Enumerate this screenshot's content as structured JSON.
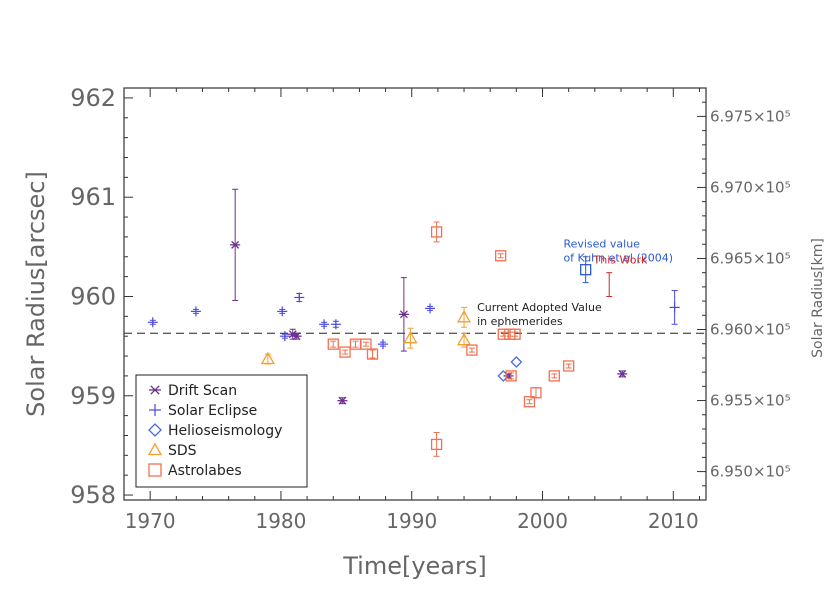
{
  "chart_data": {
    "type": "scatter",
    "xlabel": "Time[years]",
    "ylabel": "Solar Radius[arcsec]",
    "y2label": "Solar Radius[km]",
    "xlim": [
      1968,
      2012.5
    ],
    "ylim": [
      957.95,
      962.1
    ],
    "y2lim": [
      694800,
      697700
    ],
    "x_ticks": [
      1970,
      1980,
      1990,
      2000,
      2010
    ],
    "x_tick_labels": [
      "1970",
      "1980",
      "1990",
      "2000",
      "2010"
    ],
    "y_ticks": [
      958,
      959,
      960,
      961,
      962
    ],
    "y_tick_labels": [
      "958",
      "959",
      "960",
      "961",
      "962"
    ],
    "y2_ticks": [
      695000,
      695500,
      696000,
      696500,
      697000,
      697500
    ],
    "y2_tick_labels": [
      "6.950×10⁵",
      "6.955×10⁵",
      "6.960×10⁵",
      "6.965×10⁵",
      "6.970×10⁵",
      "6.975×10⁵"
    ],
    "reference_line": {
      "y": 959.63,
      "label_line1": "Current Adopted Value",
      "label_line2": "in ephemerides"
    },
    "legend": {
      "placement": "bottom-left",
      "entries": [
        {
          "name": "Drift Scan",
          "symbol": "asterisk",
          "color": "#6b2f8f"
        },
        {
          "name": "Solar Eclipse",
          "symbol": "plus",
          "color": "#4a4ae0"
        },
        {
          "name": "Helioseismology",
          "symbol": "diamond",
          "color": "#4a6ae0"
        },
        {
          "name": "SDS",
          "symbol": "triangle",
          "color": "#f0a030"
        },
        {
          "name": "Astrolabes",
          "symbol": "square",
          "color": "#f07050"
        }
      ]
    },
    "series": [
      {
        "name": "Drift Scan",
        "symbol": "asterisk",
        "color": "#6b2f8f",
        "points": [
          {
            "x": 1976.5,
            "y": 960.52,
            "err": 0.56
          },
          {
            "x": 1980.9,
            "y": 959.62,
            "err": 0.05
          },
          {
            "x": 1981.2,
            "y": 959.6,
            "err": 0.03
          },
          {
            "x": 1984.7,
            "y": 958.95,
            "err": 0.03
          },
          {
            "x": 1989.4,
            "y": 959.82,
            "err": 0.37
          },
          {
            "x": 1997.4,
            "y": 959.2,
            "err": 0.02
          },
          {
            "x": 2006.1,
            "y": 959.22,
            "err": 0.03
          }
        ]
      },
      {
        "name": "Solar Eclipse",
        "symbol": "plus",
        "color": "#4a4ae0",
        "points": [
          {
            "x": 1970.2,
            "y": 959.74,
            "err": 0.02
          },
          {
            "x": 1973.5,
            "y": 959.85,
            "err": 0.02
          },
          {
            "x": 1980.1,
            "y": 959.85,
            "err": 0.02
          },
          {
            "x": 1980.3,
            "y": 959.6,
            "err": 0.02
          },
          {
            "x": 1981.4,
            "y": 959.99,
            "err": 0.04
          },
          {
            "x": 1983.3,
            "y": 959.72,
            "err": 0.02
          },
          {
            "x": 1984.2,
            "y": 959.72,
            "err": 0.03
          },
          {
            "x": 1987.8,
            "y": 959.52,
            "err": 0.02
          },
          {
            "x": 1991.4,
            "y": 959.88,
            "err": 0.02
          },
          {
            "x": 2010.1,
            "y": 959.89,
            "err": 0.17
          }
        ]
      },
      {
        "name": "Helioseismology",
        "symbol": "diamond",
        "color": "#4a6ae0",
        "points": [
          {
            "x": 1997.0,
            "y": 959.2,
            "err": 0
          },
          {
            "x": 1998.0,
            "y": 959.34,
            "err": 0
          }
        ]
      },
      {
        "name": "SDS",
        "symbol": "triangle",
        "color": "#f0a030",
        "points": [
          {
            "x": 1979.0,
            "y": 959.37,
            "err": 0.05
          },
          {
            "x": 1989.9,
            "y": 959.58,
            "err": 0.1
          },
          {
            "x": 1994.0,
            "y": 959.56,
            "err": 0.07
          },
          {
            "x": 1994.0,
            "y": 959.79,
            "err": 0.1
          }
        ]
      },
      {
        "name": "Astrolabes",
        "symbol": "square",
        "color": "#f07050",
        "points": [
          {
            "x": 1984.0,
            "y": 959.52,
            "err": 0.03
          },
          {
            "x": 1984.9,
            "y": 959.44,
            "err": 0.02
          },
          {
            "x": 1985.7,
            "y": 959.52,
            "err": 0.03
          },
          {
            "x": 1986.5,
            "y": 959.52,
            "err": 0.02
          },
          {
            "x": 1987.0,
            "y": 959.42,
            "err": 0.04
          },
          {
            "x": 1991.9,
            "y": 960.65,
            "err": 0.1
          },
          {
            "x": 1991.9,
            "y": 958.51,
            "err": 0.12
          },
          {
            "x": 1994.6,
            "y": 959.46,
            "err": 0.02
          },
          {
            "x": 1996.8,
            "y": 960.41,
            "err": 0.02
          },
          {
            "x": 1997.0,
            "y": 959.62,
            "err": 0.02
          },
          {
            "x": 1997.5,
            "y": 959.62,
            "err": 0.02
          },
          {
            "x": 1997.9,
            "y": 959.62,
            "err": 0.02
          },
          {
            "x": 1997.6,
            "y": 959.2,
            "err": 0.03
          },
          {
            "x": 1999.0,
            "y": 958.94,
            "err": 0.02
          },
          {
            "x": 1999.5,
            "y": 959.03,
            "err": 0.05
          },
          {
            "x": 2000.9,
            "y": 959.2,
            "err": 0.02
          },
          {
            "x": 2002.0,
            "y": 959.3,
            "err": 0.02
          }
        ]
      },
      {
        "name": "Revised value of Kuhn et al (2004)",
        "symbol": "square",
        "color": "#2a5ad0",
        "points": [
          {
            "x": 2003.3,
            "y": 960.27,
            "err": 0.13
          }
        ]
      },
      {
        "name": "This Work",
        "symbol": "errorbar",
        "color": "#cc2a2a",
        "points": [
          {
            "x": 2005.1,
            "y": 960.12,
            "err": 0.12
          }
        ]
      }
    ],
    "annotations": [
      {
        "text_line1": "Revised value",
        "text_line2": "of Kuhn et al (2004)",
        "color": "#2a5ad0",
        "x": 2001.6,
        "y": 960.37
      },
      {
        "text_line1": "This Work",
        "color": "#cc2a2a",
        "x": 2003.9,
        "y": 960.33
      }
    ],
    "grid": false
  }
}
